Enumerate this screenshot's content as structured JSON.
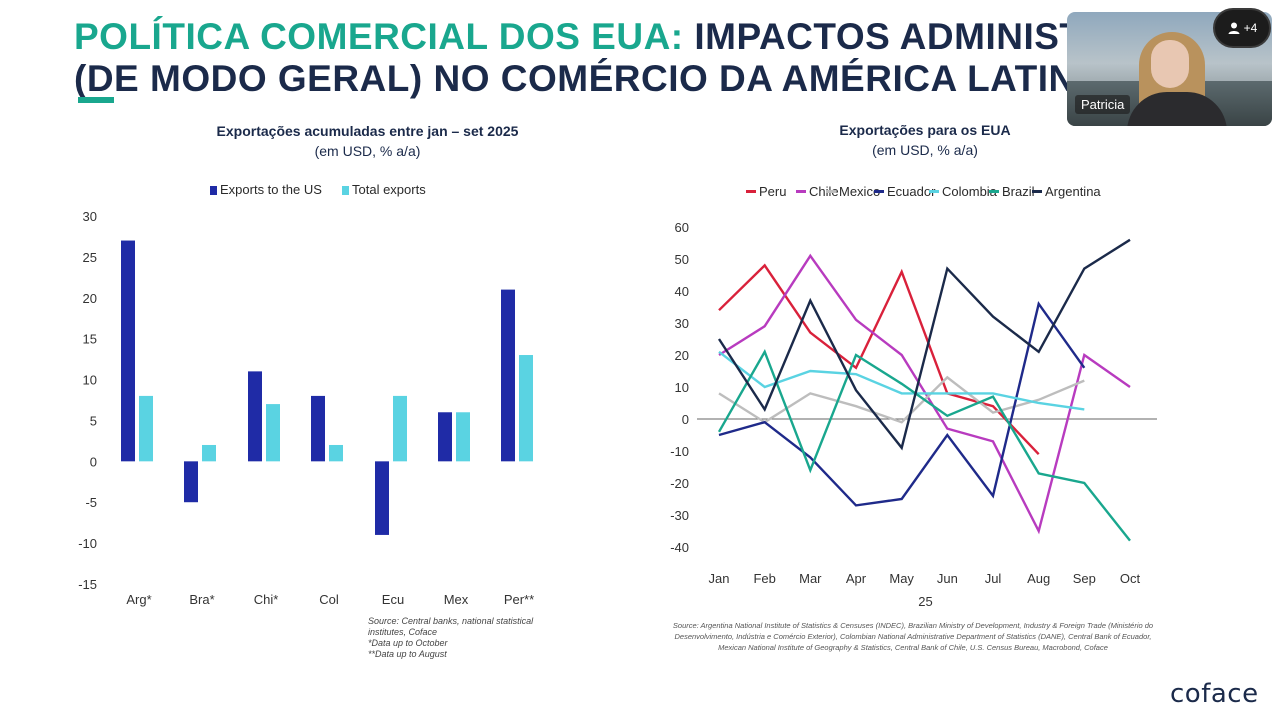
{
  "slide": {
    "title_part1": "POLÍTICA COMERCIAL DOS EUA:",
    "title_part2": "IMPACTOS ADMINISTRÁVEIS",
    "title_line2": "(DE MODO GERAL) NO COMÉRCIO DA AMÉRICA LATINA",
    "brand": "coface",
    "accent_color": "#19a78e",
    "navy_color": "#1b2a4a"
  },
  "video_call": {
    "participant_name": "Patricia",
    "more_participants": "+4",
    "icon": "person-icon"
  },
  "left_chart": {
    "title": "Exportações acumuladas entre jan – set 2025",
    "subtitle": "(em USD, % a/a)",
    "source_lines": [
      "Source: Central banks, national statistical",
      "institutes, Coface",
      "*Data up to October",
      "**Data up to August"
    ]
  },
  "right_chart": {
    "title": "Exportações para os EUA",
    "subtitle": "(em USD, % a/a)",
    "year_label": "25",
    "source": "Source: Argentina National Institute of Statistics & Censuses (INDEC), Brazilian Ministry of Development, Industry & Foreign Trade (Ministério do Desenvolvimento, Indústria e Comércio Exterior), Colombian National Administrative Department of Statistics (DANE), Central Bank of Ecuador, Mexican National Institute of Geography & Statistics, Central Bank of Chile, U.S. Census Bureau, Macrobond, Coface"
  },
  "chart_data": [
    {
      "type": "bar",
      "title": "Exportações acumuladas entre jan – set 2025",
      "subtitle": "(em USD, % a/a)",
      "categories": [
        "Arg*",
        "Bra*",
        "Chi*",
        "Col",
        "Ecu",
        "Mex",
        "Per**"
      ],
      "series": [
        {
          "name": "Exports to the US",
          "color": "#1f2ba6",
          "values": [
            27,
            -5,
            11,
            8,
            -9,
            6,
            21
          ]
        },
        {
          "name": "Total exports",
          "color": "#5ad3e2",
          "values": [
            8,
            2,
            7,
            2,
            8,
            6,
            13
          ]
        }
      ],
      "ylim": [
        -15,
        30
      ],
      "yticks": [
        30,
        25,
        20,
        15,
        10,
        5,
        0,
        -5,
        -10,
        -15
      ],
      "legend": "top",
      "grid": false
    },
    {
      "type": "line",
      "title": "Exportações para os EUA",
      "subtitle": "(em USD, % a/a)",
      "x": [
        "Jan",
        "Feb",
        "Mar",
        "Apr",
        "May",
        "Jun",
        "Jul",
        "Aug",
        "Sep",
        "Oct"
      ],
      "series": [
        {
          "name": "Peru",
          "color": "#d9213b",
          "values": [
            34,
            48,
            27,
            16,
            46,
            8,
            4,
            -11,
            null,
            null
          ]
        },
        {
          "name": "Chile",
          "color": "#b83bbf",
          "values": [
            20,
            29,
            51,
            31,
            20,
            -3,
            -7,
            -35,
            20,
            10
          ]
        },
        {
          "name": "Mexico",
          "color": "#bdbdbd",
          "values": [
            8,
            -1,
            8,
            4,
            -1,
            13,
            2,
            6,
            12,
            null
          ]
        },
        {
          "name": "Ecuador",
          "color": "#1f2a8a",
          "values": [
            -5,
            -1,
            -12,
            -27,
            -25,
            -5,
            -24,
            36,
            16,
            null
          ]
        },
        {
          "name": "Colombia",
          "color": "#5ad3e2",
          "values": [
            21,
            10,
            15,
            14,
            8,
            8,
            8,
            5,
            3,
            null
          ]
        },
        {
          "name": "Brazil",
          "color": "#19a78e",
          "values": [
            -4,
            21,
            -16,
            20,
            11,
            1,
            7,
            -17,
            -20,
            -38
          ]
        },
        {
          "name": "Argentina",
          "color": "#1b2a4a",
          "values": [
            25,
            3,
            37,
            9,
            -9,
            47,
            32,
            21,
            47,
            56
          ]
        }
      ],
      "ylim": [
        -40,
        60
      ],
      "yticks": [
        60,
        50,
        40,
        30,
        20,
        10,
        0,
        -10,
        -20,
        -30,
        -40
      ],
      "xlabel": "25",
      "legend": "top",
      "grid": false
    }
  ]
}
